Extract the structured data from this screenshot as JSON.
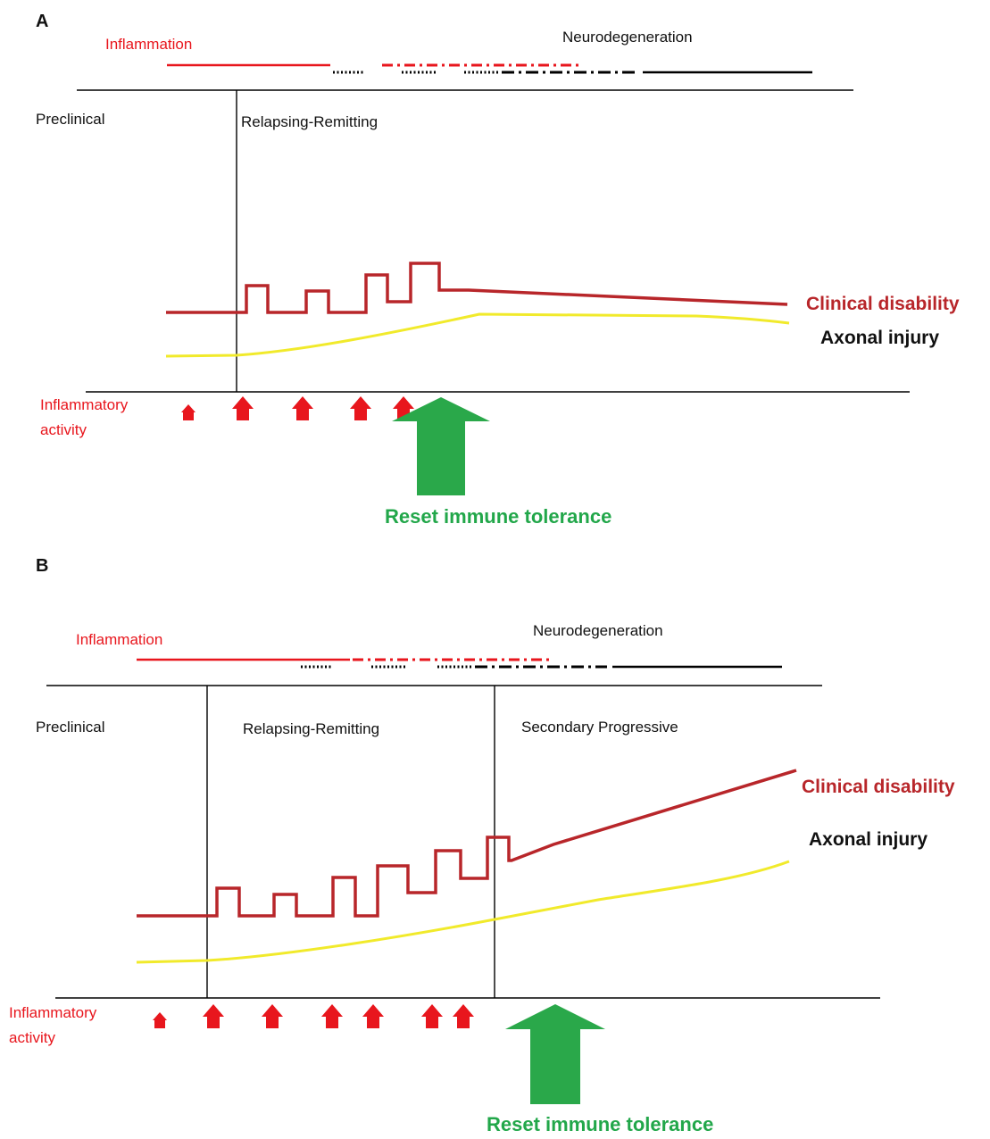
{
  "colors": {
    "inflammation": "#e8161d",
    "clinical_disability": "#b8262a",
    "axonal_injury": "#f1ea2b",
    "reset_arrow": "#2aa84a",
    "line": "#000000"
  },
  "panel_a": {
    "label": "A",
    "inflammation": "Inflammation",
    "neurodegeneration": "Neurodegeneration",
    "phases": [
      "Preclinical",
      "Relapsing-Remitting"
    ],
    "clinical_disability": "Clinical disability",
    "axonal_injury": "Axonal injury",
    "inflammatory_activity": [
      "Inflammatory",
      "activity"
    ],
    "reset": "Reset immune tolerance"
  },
  "panel_b": {
    "label": "B",
    "inflammation": "Inflammation",
    "neurodegeneration": "Neurodegeneration",
    "phases": [
      "Preclinical",
      "Relapsing-Remitting",
      "Secondary Progressive"
    ],
    "clinical_disability": "Clinical disability",
    "axonal_injury": "Axonal injury",
    "inflammatory_activity": [
      "Inflammatory",
      "activity"
    ],
    "reset": "Reset immune tolerance"
  }
}
